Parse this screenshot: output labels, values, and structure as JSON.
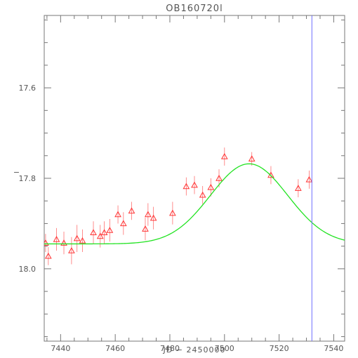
{
  "chart_data": {
    "type": "scatter",
    "title": "OB160720l",
    "xlabel": "JD − 2450000",
    "ylabel": "−",
    "xlim": [
      7434,
      7544
    ],
    "ylim": [
      18.16,
      17.44
    ],
    "y_inverted": true,
    "grid": false,
    "x_ticks": [
      7440,
      7460,
      7480,
      7500,
      7520,
      7540
    ],
    "y_ticks": [
      17.6,
      17.8,
      18.0
    ],
    "x_tick_labels": [
      "7440",
      "7460",
      "7480",
      "7500",
      "7520",
      "7540"
    ],
    "y_tick_labels": [
      "17.6",
      "17.8",
      "18.0"
    ],
    "series": [
      {
        "kind": "points",
        "marker": "triangle",
        "color": "#ff3333",
        "points": [
          {
            "x": 7434.5,
            "y": 17.943,
            "err": 0.02
          },
          {
            "x": 7435.5,
            "y": 17.972,
            "err": 0.02
          },
          {
            "x": 7438.5,
            "y": 17.935,
            "err": 0.025
          },
          {
            "x": 7441.2,
            "y": 17.943,
            "err": 0.025
          },
          {
            "x": 7444.0,
            "y": 17.96,
            "err": 0.03
          },
          {
            "x": 7446.0,
            "y": 17.933,
            "err": 0.03
          },
          {
            "x": 7448.0,
            "y": 17.938,
            "err": 0.025
          },
          {
            "x": 7452.0,
            "y": 17.92,
            "err": 0.025
          },
          {
            "x": 7454.5,
            "y": 17.928,
            "err": 0.025
          },
          {
            "x": 7456.0,
            "y": 17.92,
            "err": 0.025
          },
          {
            "x": 7458.0,
            "y": 17.915,
            "err": 0.025
          },
          {
            "x": 7461.0,
            "y": 17.88,
            "err": 0.02
          },
          {
            "x": 7463.0,
            "y": 17.9,
            "err": 0.025
          },
          {
            "x": 7466.0,
            "y": 17.872,
            "err": 0.02
          },
          {
            "x": 7471.0,
            "y": 17.912,
            "err": 0.025
          },
          {
            "x": 7472.0,
            "y": 17.88,
            "err": 0.025
          },
          {
            "x": 7474.0,
            "y": 17.888,
            "err": 0.025
          },
          {
            "x": 7481.0,
            "y": 17.877,
            "err": 0.025
          },
          {
            "x": 7486.0,
            "y": 17.818,
            "err": 0.02
          },
          {
            "x": 7489.0,
            "y": 17.815,
            "err": 0.02
          },
          {
            "x": 7492.0,
            "y": 17.837,
            "err": 0.02
          },
          {
            "x": 7495.0,
            "y": 17.82,
            "err": 0.02
          },
          {
            "x": 7498.0,
            "y": 17.8,
            "err": 0.02
          },
          {
            "x": 7500.0,
            "y": 17.752,
            "err": 0.02
          },
          {
            "x": 7510.0,
            "y": 17.757,
            "err": 0.015
          },
          {
            "x": 7517.0,
            "y": 17.793,
            "err": 0.02
          },
          {
            "x": 7527.0,
            "y": 17.822,
            "err": 0.02
          },
          {
            "x": 7531.0,
            "y": 17.803,
            "err": 0.02
          }
        ]
      },
      {
        "kind": "model",
        "color": "#22e322",
        "t0": 7509,
        "tE": 20,
        "base": 17.945,
        "peak": 17.768
      },
      {
        "kind": "vline",
        "color": "#6f6fff",
        "x": 7532
      }
    ]
  }
}
